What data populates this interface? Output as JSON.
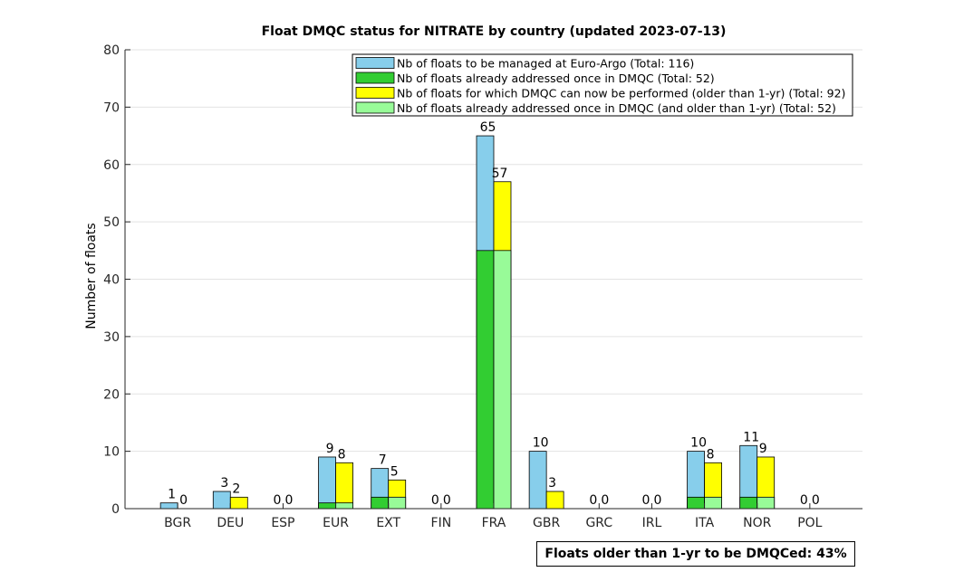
{
  "chart_data": {
    "type": "bar",
    "title": "Float DMQC status for NITRATE by country (updated 2023-07-13)",
    "xlabel": "",
    "ylabel": "Number of floats",
    "ylim": [
      0,
      80
    ],
    "yticks": [
      0,
      10,
      20,
      30,
      40,
      50,
      60,
      70,
      80
    ],
    "grid": "horizontal",
    "legend_position": "top-right",
    "categories": [
      "BGR",
      "DEU",
      "ESP",
      "EUR",
      "EXT",
      "FIN",
      "FRA",
      "GBR",
      "GRC",
      "IRL",
      "ITA",
      "NOR",
      "POL"
    ],
    "series": [
      {
        "name": "Nb of floats to be managed at Euro-Argo (Total: 116)",
        "color": "#87CEEB",
        "values": [
          1,
          3,
          0,
          9,
          7,
          0,
          65,
          10,
          0,
          0,
          10,
          11,
          0
        ]
      },
      {
        "name": "Nb of floats already addressed once in DMQC (Total: 52)",
        "color": "#32CD32",
        "values": [
          0,
          0,
          0,
          1,
          2,
          0,
          45,
          0,
          0,
          0,
          2,
          2,
          0
        ]
      },
      {
        "name": "Nb of floats for which DMQC can now be performed (older than 1-yr) (Total: 92)",
        "color": "#FFFF00",
        "values": [
          0,
          2,
          0,
          8,
          5,
          0,
          57,
          3,
          0,
          0,
          8,
          9,
          0
        ]
      },
      {
        "name": "Nb of floats already addressed once in DMQC (and older than 1-yr) (Total: 52)",
        "color": "#98FB98",
        "values": [
          0,
          0,
          0,
          1,
          2,
          0,
          45,
          0,
          0,
          0,
          2,
          2,
          0
        ]
      }
    ],
    "left_bar_labels": [
      "1",
      "3",
      "0",
      "9",
      "7",
      "0",
      "65",
      "10",
      "0",
      "0",
      "10",
      "11",
      "0"
    ],
    "right_bar_labels": [
      "0",
      "2",
      "0",
      "8",
      "5",
      "0",
      "57",
      "3",
      "0",
      "0",
      "8",
      "9",
      "0"
    ]
  },
  "summary": "Floats older than 1-yr to be DMQCed: 43%"
}
